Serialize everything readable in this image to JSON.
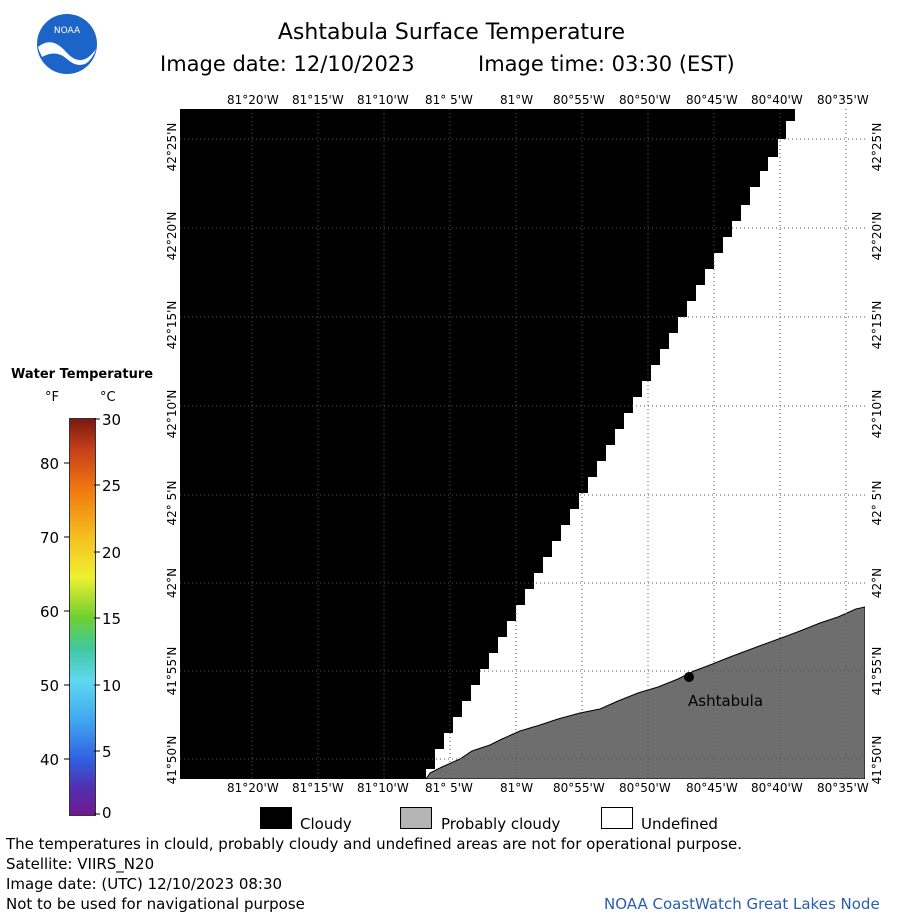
{
  "header": {
    "title": "Ashtabula Surface Temperature",
    "image_date": "Image date: 12/10/2023",
    "image_time": "Image time: 03:30 (EST)"
  },
  "logo": {
    "text": "NOAA",
    "icon": "noaa-logo"
  },
  "map": {
    "lon_labels": [
      "81°20'W",
      "81°15'W",
      "81°10'W",
      "81° 5'W",
      "81°W",
      "80°55'W",
      "80°50'W",
      "80°45'W",
      "80°40'W",
      "80°35'W"
    ],
    "lat_labels": [
      "42°25'N",
      "42°20'N",
      "42°15'N",
      "42°10'N",
      "42° 5'N",
      "42°N",
      "41°55'N",
      "41°50'N"
    ],
    "city_label": "Ashtabula",
    "colors": {
      "cloudy": "#000000",
      "land": "#6e6e6e",
      "undefined": "#ffffff",
      "grid": "#555555"
    }
  },
  "colorbar": {
    "title": "Water Temperature",
    "unit_f": "°F",
    "unit_c": "°C",
    "f_ticks": [
      "80",
      "70",
      "60",
      "50",
      "40"
    ],
    "c_ticks": [
      "30",
      "25",
      "20",
      "15",
      "10",
      "5",
      "0"
    ]
  },
  "legend": {
    "cloudy": "Cloudy",
    "probably_cloudy": "Probably cloudy",
    "undefined": "Undefined"
  },
  "footer": {
    "line1": "The temperatures in clould, probably cloudy and undefined areas are not for operational purpose.",
    "line2": "Satellite: VIIRS_N20",
    "line3": "Image date: (UTC) 12/10/2023  08:30",
    "line4": "Not to be used for navigational purpose",
    "credit": "NOAA CoastWatch Great Lakes Node"
  }
}
